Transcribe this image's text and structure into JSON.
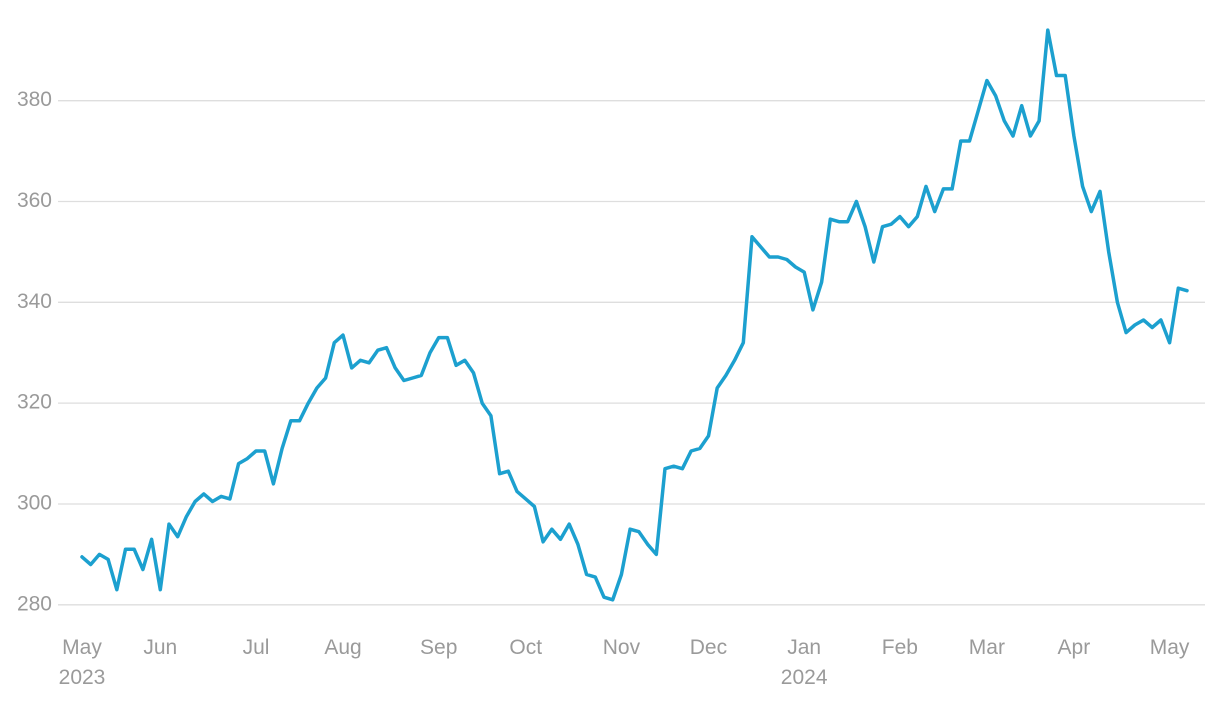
{
  "chart_data": {
    "type": "line",
    "color": "#1ca0cf",
    "grid": true,
    "ylim": [
      275,
      397
    ],
    "yticks": [
      280,
      300,
      320,
      340,
      360,
      380
    ],
    "categories": [
      "May\n2023",
      null,
      null,
      null,
      null,
      null,
      null,
      null,
      null,
      "Jun",
      null,
      null,
      null,
      null,
      null,
      null,
      null,
      null,
      null,
      null,
      "Jul",
      null,
      null,
      null,
      null,
      null,
      null,
      null,
      null,
      null,
      "Aug",
      null,
      null,
      null,
      null,
      null,
      null,
      null,
      null,
      null,
      null,
      "Sep",
      null,
      null,
      null,
      null,
      null,
      null,
      null,
      null,
      null,
      "Oct",
      null,
      null,
      null,
      null,
      null,
      null,
      null,
      null,
      null,
      null,
      "Nov",
      null,
      null,
      null,
      null,
      null,
      null,
      null,
      null,
      null,
      "Dec",
      null,
      null,
      null,
      null,
      null,
      null,
      null,
      null,
      null,
      null,
      "Jan\n2024",
      null,
      null,
      null,
      null,
      null,
      null,
      null,
      null,
      null,
      null,
      "Feb",
      null,
      null,
      null,
      null,
      null,
      null,
      null,
      null,
      null,
      "Mar",
      null,
      null,
      null,
      null,
      null,
      null,
      null,
      null,
      null,
      "Apr",
      null,
      null,
      null,
      null,
      null,
      null,
      null,
      null,
      null,
      null,
      "May",
      null,
      null
    ],
    "values": [
      289.5,
      288,
      290,
      289,
      283,
      291,
      291,
      287,
      293,
      283,
      296,
      293.5,
      297.5,
      300.5,
      302,
      300.5,
      301.5,
      301,
      308,
      309,
      310.5,
      310.5,
      304,
      311,
      316.5,
      316.5,
      320,
      323,
      325,
      332,
      333.5,
      327,
      328.5,
      328,
      330.5,
      331,
      327,
      324.5,
      325,
      325.5,
      330,
      333,
      333,
      327.5,
      328.5,
      326,
      320,
      317.5,
      306,
      306.5,
      302.5,
      301,
      299.5,
      292.5,
      295,
      293,
      296,
      292,
      286,
      285.5,
      281.5,
      281,
      286,
      295,
      294.5,
      292,
      290,
      307,
      307.5,
      307,
      310.5,
      311,
      313.5,
      323,
      325.5,
      328.5,
      332,
      353,
      351,
      349,
      349,
      348.5,
      347,
      346,
      338.5,
      344,
      356.5,
      356,
      356,
      360,
      355,
      348,
      355,
      355.5,
      357,
      355,
      357,
      363,
      358,
      362.5,
      362.5,
      372,
      372,
      378,
      384,
      381,
      376,
      373,
      379,
      373,
      376,
      394,
      385,
      385,
      373,
      363,
      358,
      362,
      350,
      340,
      334,
      335.5,
      336.5,
      335,
      336.5,
      332,
      342.8,
      342.3
    ]
  }
}
